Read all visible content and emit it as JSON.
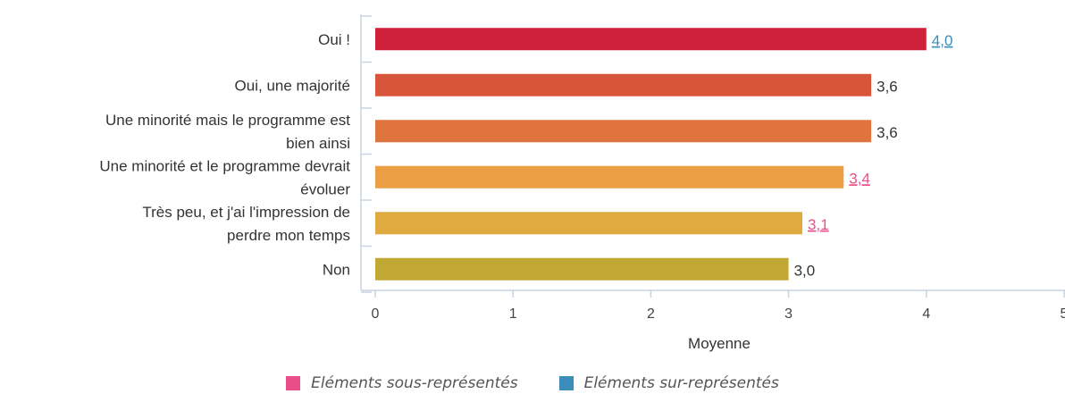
{
  "chart_data": {
    "type": "bar",
    "orientation": "horizontal",
    "categories": [
      [
        "Oui !"
      ],
      [
        "Oui, une majorité"
      ],
      [
        "Une minorité mais le programme est",
        "bien ainsi"
      ],
      [
        "Une minorité et le programme devrait",
        "évoluer"
      ],
      [
        "Très peu, et j'ai l'impression de",
        "perdre mon temps"
      ],
      [
        "Non"
      ]
    ],
    "values": [
      4.0,
      3.6,
      3.6,
      3.4,
      3.1,
      3.0
    ],
    "value_labels": [
      "4,0",
      "3,6",
      "3,6",
      "3,4",
      "3,1",
      "3,0"
    ],
    "bar_colors": [
      "#cd2239",
      "#d8543b",
      "#e0743f",
      "#ec9e45",
      "#dfaa40",
      "#c1a834"
    ],
    "label_status": [
      "over",
      "normal",
      "normal",
      "under",
      "under",
      "normal"
    ],
    "xlabel": "Moyenne",
    "ylabel": "",
    "xlim": [
      0,
      5
    ],
    "x_ticks": [
      "0",
      "1",
      "2",
      "3",
      "4",
      "5"
    ],
    "grid": false,
    "legend_position": "bottom"
  },
  "legend": {
    "items": [
      {
        "label": "Eléments sous-représentés",
        "color": "#e94e89"
      },
      {
        "label": "Eléments sur-représentés",
        "color": "#3b8dbb"
      }
    ]
  },
  "colors": {
    "normal_value": "#333333",
    "under_value": "#e94e89",
    "over_value": "#3b8dbb",
    "axis": "#c8d3e0"
  }
}
